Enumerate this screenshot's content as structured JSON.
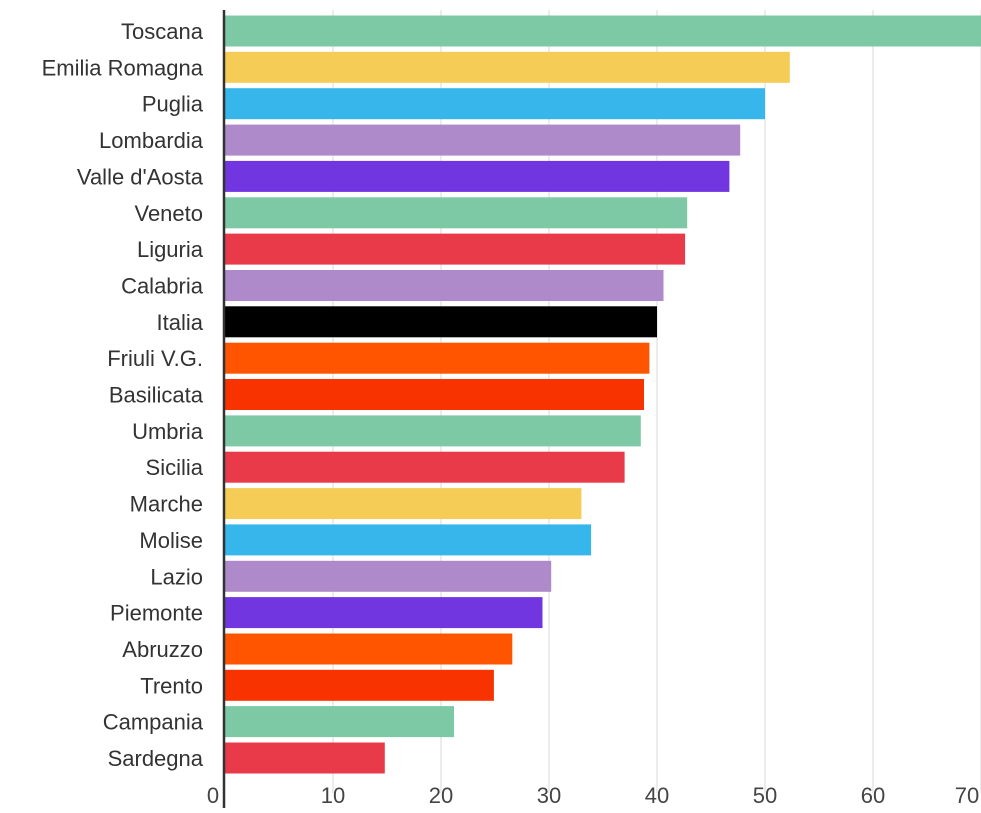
{
  "chart_data": {
    "type": "bar",
    "orientation": "horizontal",
    "title": "",
    "xlabel": "",
    "ylabel": "",
    "xlim": [
      0,
      70
    ],
    "x_ticks": [
      "0",
      "10",
      "20",
      "30",
      "40",
      "50",
      "60",
      "70"
    ],
    "grid": "vertical",
    "legend": "none",
    "categories": [
      "Toscana",
      "Emilia Romagna",
      "Puglia",
      "Lombardia",
      "Valle d'Aosta",
      "Veneto",
      "Liguria",
      "Calabria",
      "Italia",
      "Friuli V.G.",
      "Basilicata",
      "Umbria",
      "Sicilia",
      "Marche",
      "Molise",
      "Lazio",
      "Piemonte",
      "Abruzzo",
      "Trento",
      "Campania",
      "Sardegna"
    ],
    "values": [
      70.0,
      52.3,
      50.0,
      47.7,
      46.7,
      42.8,
      42.6,
      40.6,
      40.0,
      39.3,
      38.8,
      38.5,
      37.0,
      33.0,
      33.9,
      30.2,
      29.4,
      26.6,
      24.9,
      21.2,
      14.8
    ],
    "colors": [
      "#7ec9a5",
      "#f5cc55",
      "#36b6ea",
      "#ae8acb",
      "#7136e0",
      "#7ec9a5",
      "#e93a4a",
      "#ae8acb",
      "#000000",
      "#ff5500",
      "#f83300",
      "#7ec9a5",
      "#e93a4a",
      "#f5cc55",
      "#36b6ea",
      "#ae8acb",
      "#7136e0",
      "#ff5500",
      "#f83300",
      "#7ec9a5",
      "#e93a4a"
    ]
  }
}
